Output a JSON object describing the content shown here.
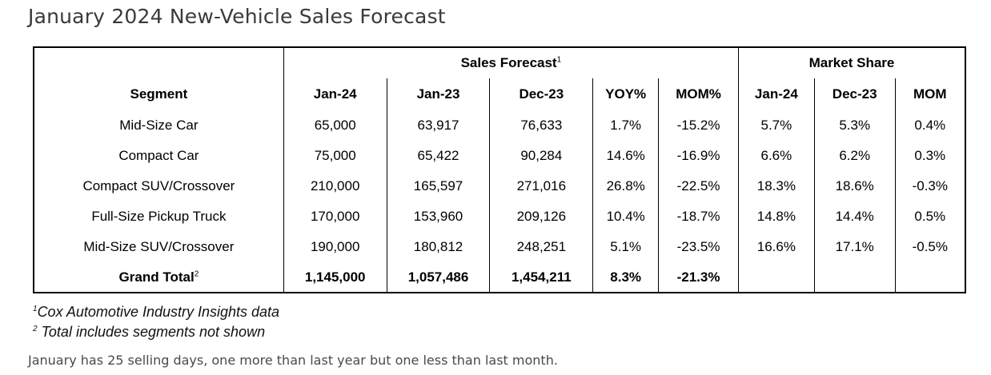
{
  "title": "January 2024 New-Vehicle Sales Forecast",
  "groups": {
    "sales_forecast": "Sales Forecast",
    "sales_forecast_note": "1",
    "market_share": "Market Share"
  },
  "columns": [
    "Segment",
    "Jan-24",
    "Jan-23",
    "Dec-23",
    "YOY%",
    "MOM%",
    "Jan-24",
    "Dec-23",
    "MOM"
  ],
  "rows": [
    [
      "Mid-Size Car",
      "65,000",
      "63,917",
      "76,633",
      "1.7%",
      "-15.2%",
      "5.7%",
      "5.3%",
      "0.4%"
    ],
    [
      "Compact Car",
      "75,000",
      "65,422",
      "90,284",
      "14.6%",
      "-16.9%",
      "6.6%",
      "6.2%",
      "0.3%"
    ],
    [
      "Compact SUV/Crossover",
      "210,000",
      "165,597",
      "271,016",
      "26.8%",
      "-22.5%",
      "18.3%",
      "18.6%",
      "-0.3%"
    ],
    [
      "Full-Size Pickup Truck",
      "170,000",
      "153,960",
      "209,126",
      "10.4%",
      "-18.7%",
      "14.8%",
      "14.4%",
      "0.5%"
    ],
    [
      "Mid-Size SUV/Crossover",
      "190,000",
      "180,812",
      "248,251",
      "5.1%",
      "-23.5%",
      "16.6%",
      "17.1%",
      "-0.5%"
    ]
  ],
  "total": {
    "label": "Grand Total",
    "label_note": "2",
    "values": [
      "1,145,000",
      "1,057,486",
      "1,454,211",
      "8.3%",
      "-21.3%",
      "",
      "",
      ""
    ]
  },
  "footnotes": [
    {
      "mark": "1",
      "text": "Cox Automotive Industry Insights data"
    },
    {
      "mark": "2",
      "text": "Total includes segments not shown"
    }
  ],
  "note": "January has 25 selling days, one more than last year but one less than last month."
}
